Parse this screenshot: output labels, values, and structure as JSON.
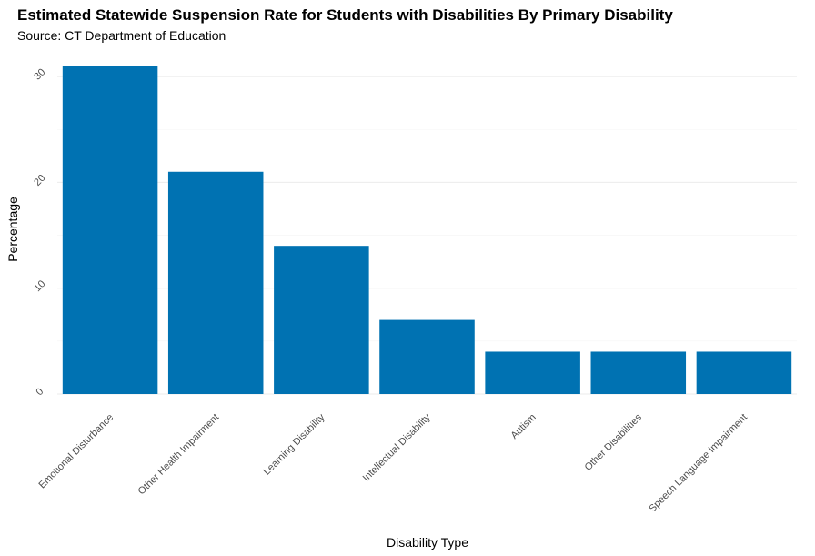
{
  "chart_data": {
    "type": "bar",
    "title": "Estimated Statewide Suspension Rate for Students with Disabilities By Primary Disability",
    "subtitle": "Source: CT Department of Education",
    "xlabel": "Disability Type",
    "ylabel": "Percentage",
    "categories": [
      "Emotional Disturbance",
      "Other Health Impairment",
      "Learning Disability",
      "Intellectual Disability",
      "Autism",
      "Other Disabilities",
      "Speech Language Impairment"
    ],
    "values": [
      31,
      21,
      14,
      7,
      4,
      4,
      4
    ],
    "ylim": [
      0,
      31
    ],
    "yticks": [
      0,
      10,
      20,
      30
    ],
    "grid": true,
    "legend": "none",
    "bar_color": "#0072B2"
  }
}
